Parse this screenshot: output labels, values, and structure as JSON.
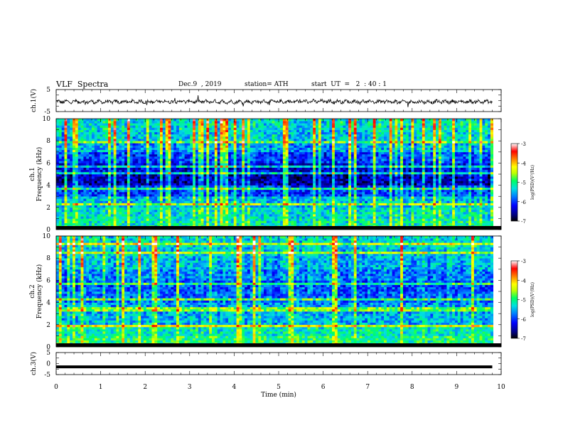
{
  "header": {
    "title": "VLF  Spectra",
    "date": "Dec.9  , 2019",
    "station": "station= ATH",
    "start_ut": "start  UT  =   2  : 40 : 1"
  },
  "colors": {
    "colormap": [
      "#000000",
      "#00007f",
      "#0000ff",
      "#0080ff",
      "#00e0e0",
      "#00ff60",
      "#c0ff00",
      "#ffff00",
      "#ff8000",
      "#ff0000",
      "#ffffff"
    ],
    "trace": "#000000",
    "background": "#ffffff"
  },
  "chart_data": [
    {
      "type": "line",
      "panel": "ch1-waveform",
      "ylabel": "ch.1(V)",
      "ylim": [
        -5,
        5
      ],
      "yticks": [
        "5",
        "-5"
      ],
      "xlim": [
        0,
        10
      ],
      "description": "noisy waveform near -0.5 V",
      "x": [
        0,
        1,
        2,
        3,
        4,
        5,
        6,
        7,
        8,
        9,
        9.8
      ],
      "values": [
        -0.5,
        -0.6,
        -0.5,
        -0.4,
        -0.6,
        -0.5,
        -0.4,
        -0.5,
        -0.6,
        -0.5,
        -0.5
      ]
    },
    {
      "type": "heatmap",
      "panel": "ch1-spectrogram",
      "ylabel": "ch.1\nFrequency  (kHz)",
      "ylim": [
        0,
        10
      ],
      "yticks": [
        "0",
        "2",
        "4",
        "6",
        "8",
        "10"
      ],
      "xlim": [
        0,
        10
      ],
      "colorbar": {
        "label": "log(PSD)(V²/Hz)",
        "ticks": [
          "-3",
          "-4",
          "-5",
          "-6",
          "-7"
        ],
        "range": [
          -7,
          -3
        ]
      },
      "freq_bands_khz": [
        0,
        1,
        2,
        3,
        4,
        5,
        6,
        7,
        8,
        9,
        10
      ],
      "mean_log_psd": [
        -5.2,
        -5.3,
        -5.5,
        -6.0,
        -6.5,
        -6.3,
        -6.0,
        -5.6,
        -5.4,
        -5.3
      ]
    },
    {
      "type": "heatmap",
      "panel": "ch2-spectrogram",
      "ylabel": "ch.2\nFrequency  (kHz)",
      "ylim": [
        0,
        10
      ],
      "yticks": [
        "0",
        "2",
        "4",
        "6",
        "8",
        "10"
      ],
      "xlim": [
        0,
        10
      ],
      "colorbar": {
        "label": "log(PSD)(V²/Hz)",
        "ticks": [
          "-3",
          "-4",
          "-5",
          "-6",
          "-7"
        ],
        "range": [
          -7,
          -3
        ]
      },
      "freq_bands_khz": [
        0,
        1,
        2,
        3,
        4,
        5,
        6,
        7,
        8,
        9,
        10
      ],
      "mean_log_psd": [
        -5.0,
        -5.2,
        -5.5,
        -5.6,
        -5.8,
        -5.9,
        -5.7,
        -5.5,
        -5.4,
        -5.3
      ]
    },
    {
      "type": "line",
      "panel": "ch3-waveform",
      "ylabel": "ch.3(V)",
      "ylim": [
        -5,
        5
      ],
      "yticks": [
        "5",
        "0",
        "-5"
      ],
      "xlim": [
        0,
        10
      ],
      "x": [
        0,
        9.8
      ],
      "values": [
        -1.5,
        -1.5
      ]
    }
  ],
  "xaxis": {
    "label": "Time  (min)",
    "ticks": [
      "0",
      "1",
      "2",
      "3",
      "4",
      "5",
      "6",
      "7",
      "8",
      "9",
      "10"
    ],
    "range": [
      0,
      10
    ]
  }
}
